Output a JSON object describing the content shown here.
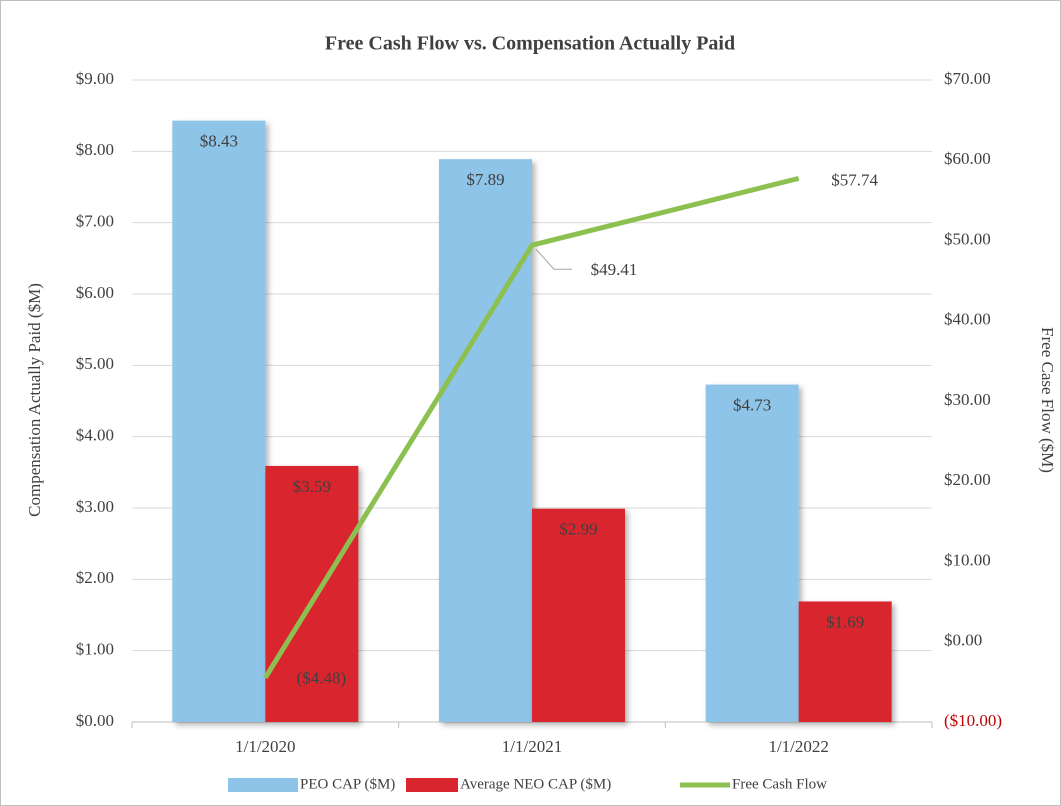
{
  "chart_data": {
    "type": "bar",
    "title": "Free Cash Flow vs. Compensation Actually Paid",
    "y_label": "Compensation Actually Paid ($M)",
    "y2_label": "Free Case Flow ($M)",
    "categories": [
      "1/1/2020",
      "1/1/2021",
      "1/1/2022"
    ],
    "series": [
      {
        "name": "PEO CAP ($M)",
        "type": "bar",
        "color": "#8ec4e8",
        "values": [
          8.43,
          7.89,
          4.73
        ],
        "value_labels": [
          "$8.43",
          "$7.89",
          "$4.73"
        ]
      },
      {
        "name": "Average NEO CAP ($M)",
        "type": "bar",
        "color": "#d9262e",
        "values": [
          3.59,
          2.99,
          1.69
        ],
        "value_labels": [
          "$3.59",
          "$2.99",
          "$1.69"
        ]
      },
      {
        "name": "Free Cash Flow",
        "type": "line",
        "axis": "y2",
        "color": "#8cc152",
        "values": [
          -4.48,
          49.41,
          57.74
        ],
        "value_labels": [
          "($4.48)",
          "$49.41",
          "$57.74"
        ]
      }
    ],
    "ylim": [
      0,
      9
    ],
    "yticks": [
      {
        "value": 0,
        "label": "$0.00"
      },
      {
        "value": 1,
        "label": "$1.00"
      },
      {
        "value": 2,
        "label": "$2.00"
      },
      {
        "value": 3,
        "label": "$3.00"
      },
      {
        "value": 4,
        "label": "$4.00"
      },
      {
        "value": 5,
        "label": "$5.00"
      },
      {
        "value": 6,
        "label": "$6.00"
      },
      {
        "value": 7,
        "label": "$7.00"
      },
      {
        "value": 8,
        "label": "$8.00"
      },
      {
        "value": 9,
        "label": "$9.00"
      }
    ],
    "y2lim": [
      -10,
      70
    ],
    "y2ticks": [
      {
        "value": -10,
        "label": "($10.00)"
      },
      {
        "value": 0,
        "label": "$0.00"
      },
      {
        "value": 10,
        "label": "$10.00"
      },
      {
        "value": 20,
        "label": "$20.00"
      },
      {
        "value": 30,
        "label": "$30.00"
      },
      {
        "value": 40,
        "label": "$40.00"
      },
      {
        "value": 50,
        "label": "$50.00"
      },
      {
        "value": 60,
        "label": "$60.00"
      },
      {
        "value": 70,
        "label": "$70.00"
      }
    ],
    "y2_negative_color": "#c00000",
    "grid": true,
    "legend": "bottom"
  }
}
